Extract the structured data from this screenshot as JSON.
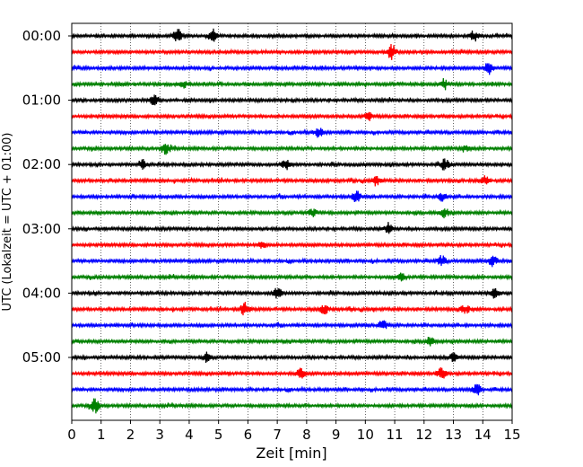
{
  "chart_data": {
    "type": "line",
    "title": "",
    "xlabel": "Zeit  [min]",
    "ylabel": "UTC (Lokalzeit = UTC + 01:00)",
    "xlim": [
      0,
      15
    ],
    "x_ticks": [
      0,
      1,
      2,
      3,
      4,
      5,
      6,
      7,
      8,
      9,
      10,
      11,
      12,
      13,
      14,
      15
    ],
    "x_tick_labels": [
      "0",
      "1",
      "2",
      "3",
      "4",
      "5",
      "6",
      "7",
      "8",
      "9",
      "10",
      "11",
      "12",
      "13",
      "14",
      "15"
    ],
    "y_tick_labels": [
      "00:00",
      "01:00",
      "02:00",
      "03:00",
      "04:00",
      "05:00"
    ],
    "grid": {
      "x": true,
      "y": false,
      "style": "dotted"
    },
    "trace_interval_minutes": 15,
    "trace_count": 24,
    "trace_color_cycle": [
      "#000000",
      "#ff0000",
      "#0000ff",
      "#008000"
    ],
    "traces": [
      {
        "start": "00:00",
        "bursts": [
          [
            3.6,
            1.0
          ],
          [
            4.8,
            0.9
          ],
          [
            13.7,
            0.8
          ]
        ]
      },
      {
        "start": "00:15",
        "bursts": [
          [
            10.9,
            1.3
          ]
        ]
      },
      {
        "start": "00:30",
        "bursts": [
          [
            14.2,
            0.9
          ]
        ]
      },
      {
        "start": "00:45",
        "bursts": [
          [
            3.8,
            0.5
          ],
          [
            12.7,
            0.6
          ]
        ]
      },
      {
        "start": "01:00",
        "bursts": [
          [
            2.8,
            1.0
          ]
        ]
      },
      {
        "start": "01:15",
        "bursts": [
          [
            10.1,
            0.6
          ]
        ]
      },
      {
        "start": "01:30",
        "bursts": [
          [
            8.4,
            0.7
          ]
        ]
      },
      {
        "start": "01:45",
        "bursts": [
          [
            3.2,
            0.8
          ],
          [
            13.4,
            0.5
          ]
        ]
      },
      {
        "start": "02:00",
        "bursts": [
          [
            2.4,
            0.7
          ],
          [
            7.3,
            0.8
          ],
          [
            12.7,
            0.9
          ]
        ]
      },
      {
        "start": "02:15",
        "bursts": [
          [
            10.4,
            0.6
          ],
          [
            14.1,
            0.7
          ]
        ]
      },
      {
        "start": "02:30",
        "bursts": [
          [
            9.7,
            0.8
          ],
          [
            12.6,
            0.7
          ]
        ]
      },
      {
        "start": "02:45",
        "bursts": [
          [
            8.2,
            0.6
          ],
          [
            12.7,
            0.7
          ]
        ]
      },
      {
        "start": "03:00",
        "bursts": [
          [
            10.8,
            0.7
          ]
        ]
      },
      {
        "start": "03:15",
        "bursts": [
          [
            6.5,
            0.5
          ]
        ]
      },
      {
        "start": "03:30",
        "bursts": [
          [
            12.6,
            0.8
          ],
          [
            14.3,
            0.9
          ]
        ]
      },
      {
        "start": "03:45",
        "bursts": [
          [
            11.2,
            0.6
          ]
        ]
      },
      {
        "start": "04:00",
        "bursts": [
          [
            7.0,
            0.9
          ],
          [
            14.4,
            0.8
          ]
        ]
      },
      {
        "start": "04:15",
        "bursts": [
          [
            5.9,
            1.0
          ],
          [
            8.6,
            0.7
          ],
          [
            13.4,
            0.7
          ]
        ]
      },
      {
        "start": "04:30",
        "bursts": [
          [
            10.6,
            0.8
          ]
        ]
      },
      {
        "start": "04:45",
        "bursts": [
          [
            12.2,
            0.6
          ]
        ]
      },
      {
        "start": "05:00",
        "bursts": [
          [
            4.6,
            0.7
          ],
          [
            13.0,
            0.6
          ]
        ]
      },
      {
        "start": "05:15",
        "bursts": [
          [
            7.8,
            0.8
          ],
          [
            12.6,
            0.9
          ]
        ]
      },
      {
        "start": "05:30",
        "bursts": [
          [
            13.8,
            0.8
          ]
        ]
      },
      {
        "start": "05:45",
        "bursts": [
          [
            0.8,
            1.1
          ]
        ]
      }
    ]
  }
}
